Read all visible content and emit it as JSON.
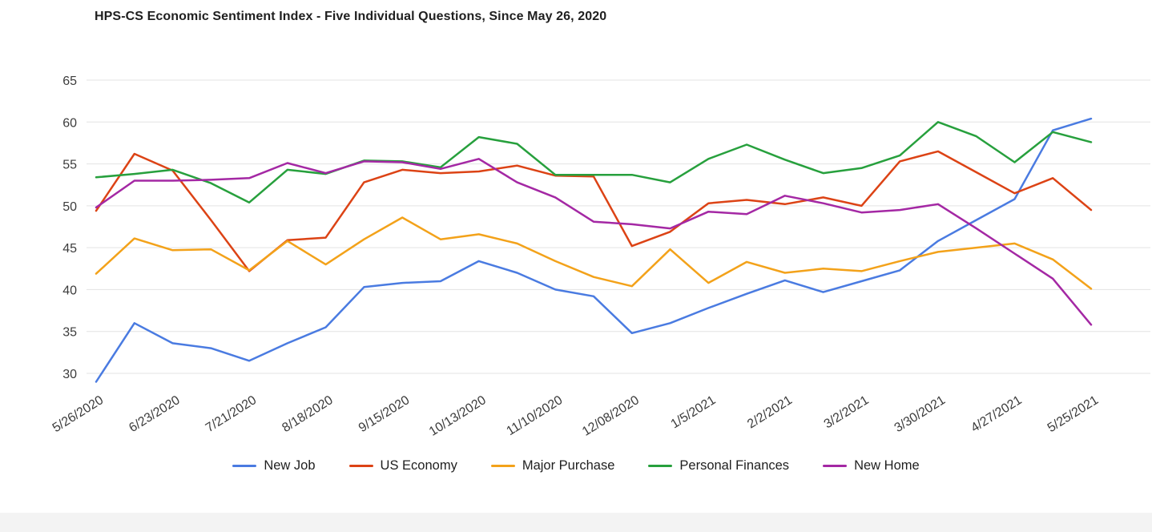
{
  "chart_data": {
    "type": "line",
    "title": "HPS-CS Economic Sentiment Index - Five Individual Questions, Since May 26, 2020",
    "xlabel": "",
    "ylabel": "",
    "ylim": [
      30,
      65
    ],
    "y_ticks": [
      30,
      35,
      40,
      45,
      50,
      55,
      60,
      65
    ],
    "grid": "horizontal",
    "legend_position": "bottom",
    "x": [
      "5/26/2020",
      "6/9/2020",
      "6/23/2020",
      "7/7/2020",
      "7/21/2020",
      "8/4/2020",
      "8/18/2020",
      "9/1/2020",
      "9/15/2020",
      "9/29/2020",
      "10/13/2020",
      "10/27/2020",
      "11/10/2020",
      "11/24/2020",
      "12/08/2020",
      "12/22/2020",
      "1/5/2021",
      "1/19/2021",
      "2/2/2021",
      "2/16/2021",
      "3/2/2021",
      "3/16/2021",
      "3/30/2021",
      "4/13/2021",
      "4/27/2021",
      "5/11/2021",
      "5/25/2021"
    ],
    "x_tick_labels": [
      "5/26/2020",
      "6/23/2020",
      "7/21/2020",
      "8/18/2020",
      "9/15/2020",
      "10/13/2020",
      "11/10/2020",
      "12/08/2020",
      "1/5/2021",
      "2/2/2021",
      "3/2/2021",
      "3/30/2021",
      "4/27/2021",
      "5/25/2021"
    ],
    "series": [
      {
        "name": "New Job",
        "color": "#4a7be1",
        "values": [
          29.0,
          36.0,
          33.6,
          33.0,
          31.5,
          33.6,
          35.5,
          40.3,
          40.8,
          41.0,
          43.4,
          42.0,
          40.0,
          39.2,
          34.8,
          36.0,
          37.8,
          39.5,
          41.1,
          39.7,
          41.0,
          42.3,
          45.8,
          48.3,
          50.8,
          59.0,
          60.4
        ]
      },
      {
        "name": "US Economy",
        "color": "#dc4315",
        "values": [
          49.4,
          56.2,
          54.2,
          48.3,
          42.2,
          45.9,
          46.2,
          52.8,
          54.3,
          53.9,
          54.1,
          54.8,
          53.6,
          53.5,
          45.2,
          46.9,
          50.3,
          50.7,
          50.2,
          51.0,
          50.0,
          55.3,
          56.5,
          54.0,
          51.5,
          53.3,
          49.5
        ]
      },
      {
        "name": "Major Purchase",
        "color": "#f3a21a",
        "values": [
          41.9,
          46.1,
          44.7,
          44.8,
          42.3,
          45.8,
          43.0,
          46.0,
          48.6,
          46.0,
          46.6,
          45.5,
          43.4,
          41.5,
          40.4,
          44.8,
          40.8,
          43.3,
          42.0,
          42.5,
          42.2,
          43.4,
          44.5,
          45.0,
          45.5,
          43.6,
          40.1
        ]
      },
      {
        "name": "Personal Finances",
        "color": "#27a03d",
        "values": [
          53.4,
          53.8,
          54.3,
          52.7,
          50.4,
          54.3,
          53.8,
          55.4,
          55.3,
          54.6,
          58.2,
          57.4,
          53.7,
          53.7,
          53.7,
          52.8,
          55.6,
          57.3,
          55.5,
          53.9,
          54.5,
          56.0,
          60.0,
          58.3,
          55.2,
          58.8,
          57.6
        ]
      },
      {
        "name": "New Home",
        "color": "#a428a4",
        "values": [
          49.8,
          53.0,
          53.0,
          53.1,
          53.3,
          55.1,
          53.9,
          55.3,
          55.2,
          54.4,
          55.6,
          52.8,
          51.0,
          48.1,
          47.8,
          47.3,
          49.3,
          49.0,
          51.2,
          50.3,
          49.2,
          49.5,
          50.2,
          47.3,
          44.3,
          41.3,
          35.8
        ]
      }
    ]
  }
}
